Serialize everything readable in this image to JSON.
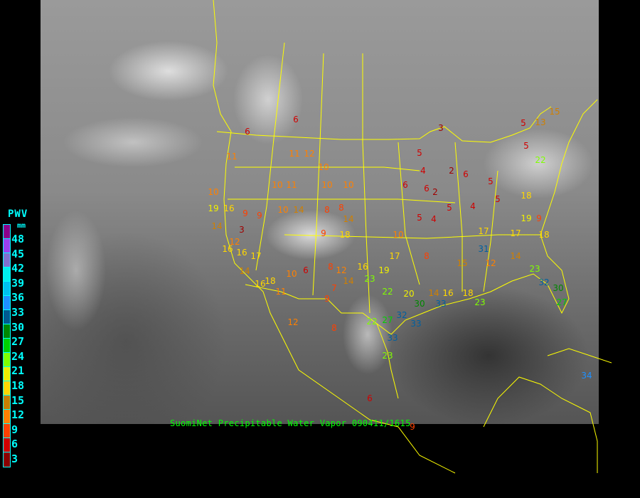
{
  "caption": "SuomiNet Precipitable Water Vapor 090411/1615",
  "legend": {
    "title": "PWV",
    "unit": "mm",
    "ticks": [
      "48",
      "45",
      "42",
      "39",
      "36",
      "33",
      "30",
      "27",
      "24",
      "21",
      "18",
      "15",
      "12",
      "9",
      "6",
      "3"
    ],
    "colors": [
      "#8b008b",
      "#9a40f0",
      "#8070d0",
      "#00f0f0",
      "#00c0f0",
      "#1e90ff",
      "#005a90",
      "#008800",
      "#00d000",
      "#80ff00",
      "#f0f000",
      "#ffd700",
      "#c88000",
      "#ff8000",
      "#ff4000",
      "#d00000",
      "#8b0000"
    ]
  },
  "stations": [
    "6",
    "3",
    "5",
    "15",
    "13",
    "6",
    "11",
    "11",
    "12",
    "10",
    "10",
    "10",
    "11",
    "10",
    "10",
    "19",
    "16",
    "14",
    "3",
    "9",
    "9",
    "10",
    "14",
    "8",
    "8",
    "14",
    "9",
    "18",
    "10",
    "5",
    "4",
    "6",
    "6",
    "2",
    "4",
    "5",
    "2",
    "6",
    "4",
    "5",
    "5",
    "5",
    "5",
    "22",
    "18",
    "19",
    "9",
    "17",
    "18",
    "17",
    "14",
    "12",
    "31",
    "15",
    "8",
    "17",
    "16",
    "14",
    "23",
    "19",
    "20",
    "30",
    "33",
    "32",
    "27",
    "22",
    "22",
    "33",
    "23",
    "33",
    "14",
    "16",
    "18",
    "23",
    "32",
    "30",
    "23",
    "27",
    "10",
    "6",
    "8",
    "12",
    "18",
    "11",
    "16",
    "14",
    "17",
    "16",
    "16",
    "12",
    "12",
    "8",
    "6",
    "9",
    "34",
    "9",
    "7"
  ]
}
